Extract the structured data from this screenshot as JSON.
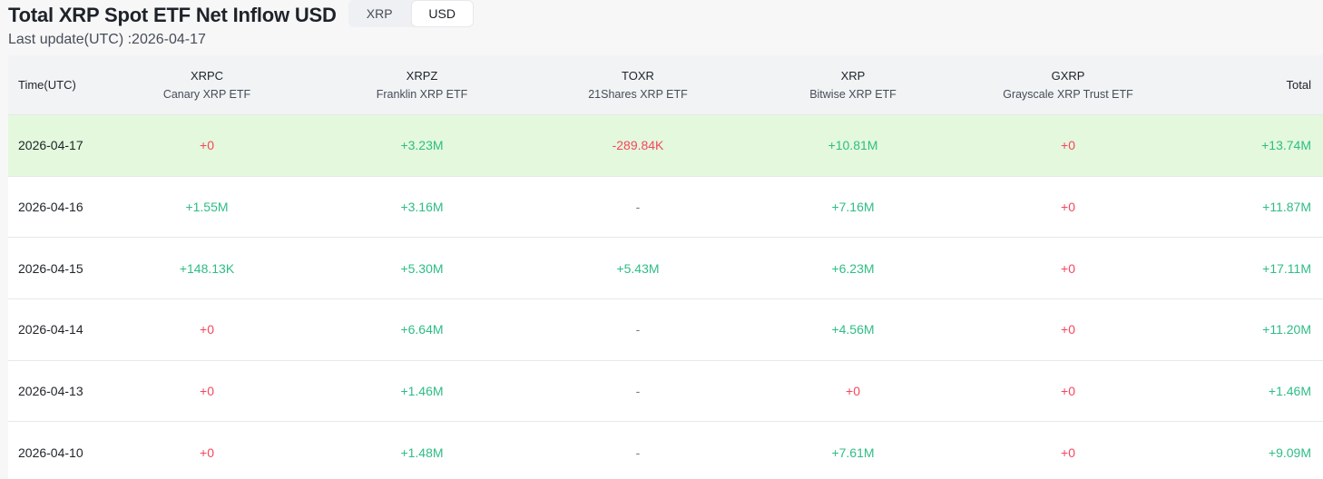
{
  "header": {
    "title": "Total XRP Spot ETF Net Inflow USD",
    "toggle": [
      {
        "label": "XRP",
        "active": false
      },
      {
        "label": "USD",
        "active": true
      }
    ]
  },
  "subtitle": "Last update(UTC) :2026-04-17",
  "table": {
    "columns": {
      "time": {
        "label": "Time(UTC)"
      },
      "xrpc": {
        "ticker": "XRPC",
        "fund": "Canary XRP ETF"
      },
      "xrpz": {
        "ticker": "XRPZ",
        "fund": "Franklin XRP ETF"
      },
      "toxr": {
        "ticker": "TOXR",
        "fund": "21Shares XRP ETF"
      },
      "xrp": {
        "ticker": "XRP",
        "fund": "Bitwise XRP ETF"
      },
      "gxrp": {
        "ticker": "GXRP",
        "fund": "Grayscale XRP Trust ETF"
      },
      "total": {
        "label": "Total"
      }
    },
    "rows": [
      {
        "date": "2026-04-17",
        "xrpc": "+0",
        "xrpz": "+3.23M",
        "toxr": "-289.84K",
        "xrp": "+10.81M",
        "gxrp": "+0",
        "total": "+13.74M"
      },
      {
        "date": "2026-04-16",
        "xrpc": "+1.55M",
        "xrpz": "+3.16M",
        "toxr": "-",
        "xrp": "+7.16M",
        "gxrp": "+0",
        "total": "+11.87M"
      },
      {
        "date": "2026-04-15",
        "xrpc": "+148.13K",
        "xrpz": "+5.30M",
        "toxr": "+5.43M",
        "xrp": "+6.23M",
        "gxrp": "+0",
        "total": "+17.11M"
      },
      {
        "date": "2026-04-14",
        "xrpc": "+0",
        "xrpz": "+6.64M",
        "toxr": "-",
        "xrp": "+4.56M",
        "gxrp": "+0",
        "total": "+11.20M"
      },
      {
        "date": "2026-04-13",
        "xrpc": "+0",
        "xrpz": "+1.46M",
        "toxr": "-",
        "xrp": "+0",
        "gxrp": "+0",
        "total": "+1.46M"
      },
      {
        "date": "2026-04-10",
        "xrpc": "+0",
        "xrpz": "+1.48M",
        "toxr": "-",
        "xrp": "+7.61M",
        "gxrp": "+0",
        "total": "+9.09M"
      }
    ]
  },
  "colors": {
    "positive": "#2ebd85",
    "negative": "#f6465d",
    "highlight_row": "#e3f8dc",
    "header_bg": "#f1f3f5"
  }
}
